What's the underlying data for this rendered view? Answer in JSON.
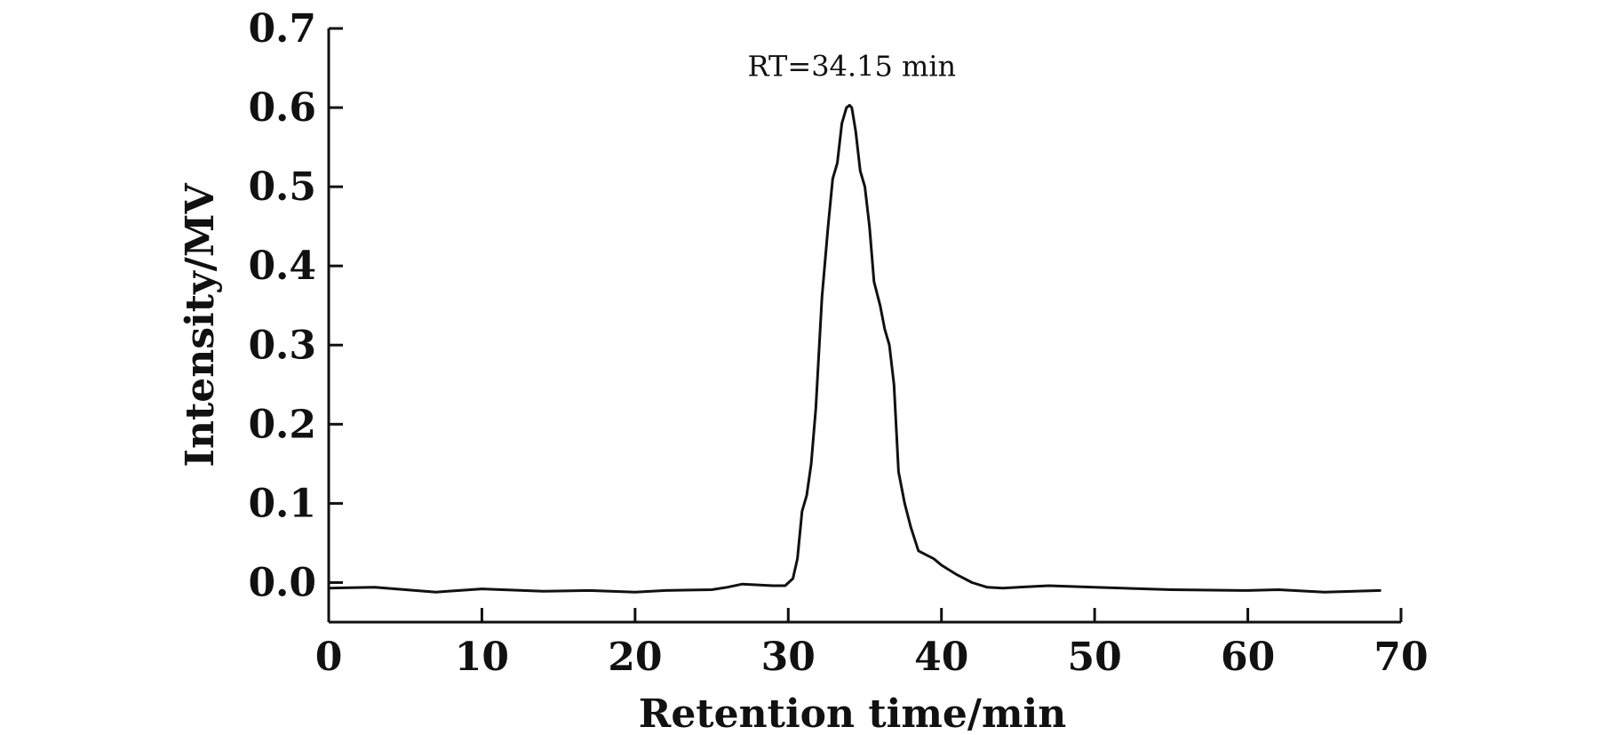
{
  "chart_data": {
    "type": "line",
    "title": "",
    "xlabel": "Retention time/min",
    "ylabel": "Intensity/MV",
    "xlim": [
      0,
      70
    ],
    "ylim": [
      -0.05,
      0.7
    ],
    "xticks": [
      0,
      10,
      20,
      30,
      40,
      50,
      60,
      70
    ],
    "xtick_labels": [
      "0",
      "10",
      "20",
      "30",
      "40",
      "50",
      "60",
      "70"
    ],
    "yticks": [
      0.0,
      0.1,
      0.2,
      0.3,
      0.4,
      0.5,
      0.6,
      0.7
    ],
    "ytick_labels": [
      "0.0",
      "0.1",
      "0.2",
      "0.3",
      "0.4",
      "0.5",
      "0.6",
      "0.7"
    ],
    "grid": false,
    "legend": "none",
    "annotations": [
      {
        "text": "RT=34.15 min",
        "x": 34.15,
        "y": 0.64
      }
    ],
    "series": [
      {
        "x": [
          0,
          3,
          7,
          10,
          14,
          17,
          20,
          22,
          25,
          26,
          27,
          28,
          29,
          29.8,
          30.3,
          30.6,
          30.9,
          31.2,
          31.5,
          31.8,
          32.2,
          32.6,
          32.9,
          33.2,
          33.5,
          33.8,
          34.0,
          34.15,
          34.4,
          34.7,
          35.0,
          35.3,
          35.6,
          36.0,
          36.3,
          36.6,
          36.9,
          37.2,
          37.6,
          38.0,
          38.5,
          39.0,
          39.5,
          40.0,
          41.0,
          42.0,
          43.0,
          44.0,
          45.0,
          47.0,
          50.0,
          55.0,
          60.0,
          62.0,
          65.0,
          68.7
        ],
        "y": [
          -0.007,
          -0.006,
          -0.012,
          -0.008,
          -0.011,
          -0.01,
          -0.012,
          -0.01,
          -0.009,
          -0.006,
          -0.002,
          -0.003,
          -0.004,
          -0.004,
          0.005,
          0.03,
          0.09,
          0.11,
          0.15,
          0.22,
          0.36,
          0.45,
          0.51,
          0.53,
          0.58,
          0.6,
          0.603,
          0.6,
          0.57,
          0.52,
          0.5,
          0.45,
          0.38,
          0.35,
          0.32,
          0.3,
          0.25,
          0.14,
          0.1,
          0.07,
          0.04,
          0.035,
          0.03,
          0.022,
          0.01,
          0.0,
          -0.006,
          -0.007,
          -0.006,
          -0.004,
          -0.006,
          -0.009,
          -0.01,
          -0.009,
          -0.012,
          -0.01
        ]
      }
    ]
  }
}
